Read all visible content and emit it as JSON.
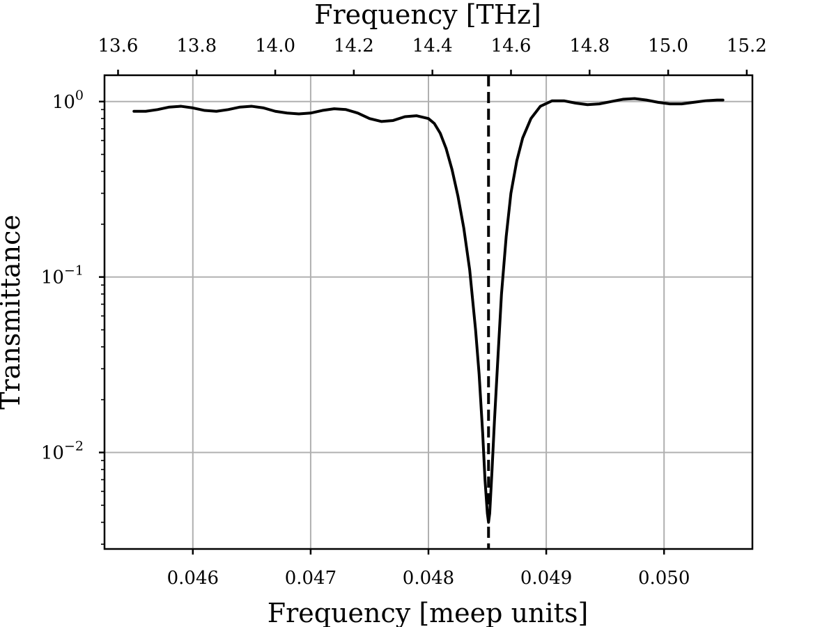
{
  "chart_data": {
    "type": "line",
    "title": "",
    "xlabel": "Frequency [meep units]",
    "ylabel": "Transmittance",
    "top_xlabel": "Frequency [THz]",
    "xlim": [
      0.04525,
      0.05075
    ],
    "ylim_log10": [
      -2.55,
      0.15
    ],
    "y_scale": "log",
    "grid": true,
    "legend": "none",
    "x_ticks": [
      {
        "value": 0.046,
        "label": "0.046"
      },
      {
        "value": 0.047,
        "label": "0.047"
      },
      {
        "value": 0.048,
        "label": "0.048"
      },
      {
        "value": 0.049,
        "label": "0.049"
      },
      {
        "value": 0.05,
        "label": "0.050"
      }
    ],
    "top_ticks": [
      {
        "value": 13.6,
        "label": "13.6"
      },
      {
        "value": 13.8,
        "label": "13.8"
      },
      {
        "value": 14.0,
        "label": "14.0"
      },
      {
        "value": 14.2,
        "label": "14.2"
      },
      {
        "value": 14.4,
        "label": "14.4"
      },
      {
        "value": 14.6,
        "label": "14.6"
      },
      {
        "value": 14.8,
        "label": "14.8"
      },
      {
        "value": 15.0,
        "label": "15.0"
      },
      {
        "value": 15.2,
        "label": "15.2"
      }
    ],
    "top_axis_thz_per_unit": 299.79,
    "y_ticks": [
      {
        "log10": 0,
        "base": "10",
        "exp": "0"
      },
      {
        "log10": -1,
        "base": "10",
        "exp": "−1"
      },
      {
        "log10": -2,
        "base": "10",
        "exp": "−2"
      }
    ],
    "resonance_x": 0.04851,
    "series": [
      {
        "color": "#000000",
        "x": [
          0.0455,
          0.0456,
          0.0457,
          0.0458,
          0.0459,
          0.046,
          0.0461,
          0.0462,
          0.0463,
          0.0464,
          0.0465,
          0.0466,
          0.0467,
          0.0468,
          0.0469,
          0.047,
          0.0471,
          0.0472,
          0.0473,
          0.0474,
          0.0475,
          0.0476,
          0.0477,
          0.0478,
          0.0479,
          0.048,
          0.04805,
          0.0481,
          0.04815,
          0.0482,
          0.04825,
          0.0483,
          0.04835,
          0.0484,
          0.04843,
          0.04846,
          0.04848,
          0.0485,
          0.04851,
          0.04852,
          0.04854,
          0.04856,
          0.04859,
          0.04862,
          0.04866,
          0.0487,
          0.04875,
          0.0488,
          0.04887,
          0.04895,
          0.04905,
          0.04915,
          0.04925,
          0.04935,
          0.04945,
          0.04955,
          0.04965,
          0.04975,
          0.04985,
          0.04995,
          0.05005,
          0.05015,
          0.05025,
          0.05035,
          0.05045,
          0.0505
        ],
        "y": [
          0.88,
          0.88,
          0.9,
          0.93,
          0.94,
          0.92,
          0.89,
          0.88,
          0.9,
          0.93,
          0.94,
          0.92,
          0.88,
          0.86,
          0.85,
          0.86,
          0.89,
          0.91,
          0.9,
          0.86,
          0.8,
          0.77,
          0.78,
          0.82,
          0.83,
          0.8,
          0.75,
          0.66,
          0.54,
          0.41,
          0.29,
          0.19,
          0.11,
          0.05,
          0.028,
          0.013,
          0.007,
          0.0045,
          0.004,
          0.0045,
          0.008,
          0.015,
          0.035,
          0.08,
          0.17,
          0.3,
          0.46,
          0.62,
          0.8,
          0.94,
          1.01,
          1.01,
          0.98,
          0.96,
          0.97,
          1.0,
          1.03,
          1.04,
          1.02,
          0.99,
          0.97,
          0.97,
          0.99,
          1.01,
          1.02,
          1.02
        ]
      }
    ]
  }
}
